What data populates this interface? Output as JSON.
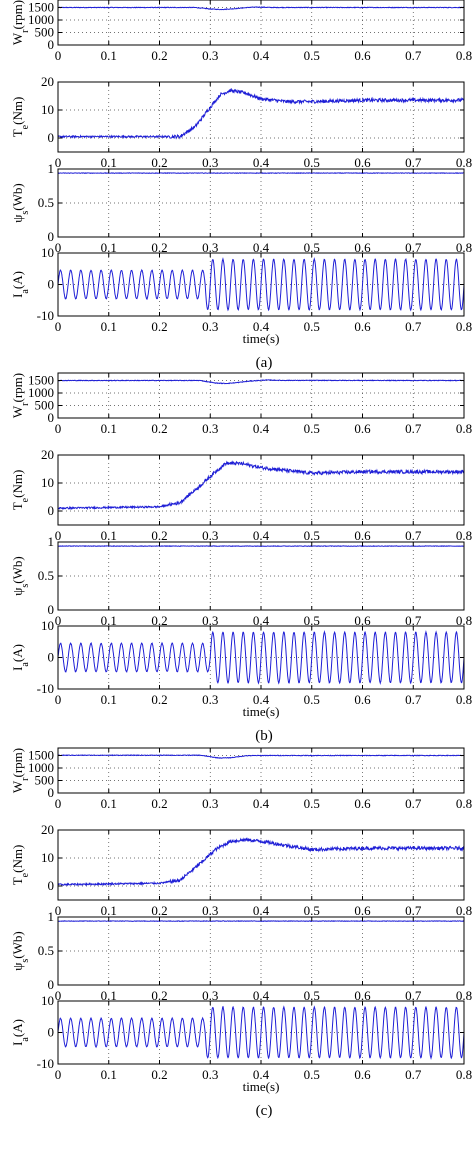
{
  "figure": {
    "xlabel": "time(s)",
    "panels": [
      "(a)",
      "(b)",
      "(c)"
    ]
  },
  "colors": {
    "trace": "#1f1fd6",
    "axis": "#000000",
    "grid": "#444444"
  },
  "chart_data": [
    {
      "type": "line",
      "title": "",
      "subplots": [
        {
          "ylabel": "W_r(rpm)",
          "ylim": [
            0,
            1800
          ],
          "yticks": [
            "0",
            "500",
            "1000",
            "1500"
          ],
          "xlim": [
            0,
            0.8
          ],
          "xticks": [
            "0",
            "0.1",
            "0.2",
            "0.3",
            "0.4",
            "0.5",
            "0.6",
            "0.7",
            "0.8"
          ],
          "series": [
            {
              "x": [
                0,
                0.27,
                0.3,
                0.32,
                0.34,
                0.38,
                0.4,
                0.42,
                0.8
              ],
              "values": [
                1500,
                1500,
                1440,
                1420,
                1440,
                1510,
                1515,
                1500,
                1500
              ]
            }
          ]
        },
        {
          "ylabel": "T_e(Nm)",
          "ylim": [
            -5,
            20
          ],
          "yticks": [
            "0",
            "10",
            "20"
          ],
          "xlim": [
            0,
            0.8
          ],
          "xticks": [
            "0",
            "0.1",
            "0.2",
            "0.3",
            "0.4",
            "0.5",
            "0.6",
            "0.7",
            "0.8"
          ],
          "series": [
            {
              "x": [
                0,
                0.24,
                0.27,
                0.3,
                0.32,
                0.34,
                0.37,
                0.4,
                0.45,
                0.5,
                0.6,
                0.7,
                0.8
              ],
              "values": [
                0.5,
                0.5,
                4,
                11,
                15.5,
                17,
                16,
                14,
                13,
                13,
                13.5,
                13.5,
                13.5
              ]
            }
          ]
        },
        {
          "ylabel": "ψ_s(Wb)",
          "ylim": [
            0,
            1
          ],
          "yticks": [
            "0",
            "0.5",
            "1"
          ],
          "xlim": [
            0,
            0.8
          ],
          "xticks": [
            "0",
            "0.1",
            "0.2",
            "0.3",
            "0.4",
            "0.5",
            "0.6",
            "0.7",
            "0.8"
          ],
          "series": [
            {
              "x": [
                0,
                0.8
              ],
              "values": [
                0.94,
                0.94
              ]
            }
          ]
        },
        {
          "ylabel": "I_a(A)",
          "ylim": [
            -10,
            10
          ],
          "yticks": [
            "-10",
            "0",
            "10"
          ],
          "xlim": [
            0,
            0.8
          ],
          "xticks": [
            "0",
            "0.1",
            "0.2",
            "0.3",
            "0.4",
            "0.5",
            "0.6",
            "0.7",
            "0.8"
          ],
          "series": [
            {
              "waveform": "sine",
              "frequency_hz": 50,
              "amplitude_before": 4.5,
              "amplitude_after": 8,
              "transition_x": 0.29
            }
          ]
        }
      ]
    },
    {
      "type": "line",
      "title": "",
      "subplots": [
        {
          "ylabel": "W_r(rpm)",
          "ylim": [
            0,
            1800
          ],
          "yticks": [
            "0",
            "500",
            "1000",
            "1500"
          ],
          "xlim": [
            0,
            0.8
          ],
          "xticks": [
            "0",
            "0.1",
            "0.2",
            "0.3",
            "0.4",
            "0.5",
            "0.6",
            "0.7",
            "0.8"
          ],
          "series": [
            {
              "x": [
                0,
                0.28,
                0.31,
                0.33,
                0.35,
                0.38,
                0.41,
                0.44,
                0.8
              ],
              "values": [
                1500,
                1500,
                1400,
                1380,
                1410,
                1480,
                1520,
                1505,
                1500
              ]
            }
          ]
        },
        {
          "ylabel": "T_e(Nm)",
          "ylim": [
            -5,
            20
          ],
          "yticks": [
            "0",
            "10",
            "20"
          ],
          "xlim": [
            0,
            0.8
          ],
          "xticks": [
            "0",
            "0.1",
            "0.2",
            "0.3",
            "0.4",
            "0.5",
            "0.6",
            "0.7",
            "0.8"
          ],
          "series": [
            {
              "x": [
                0,
                0.2,
                0.24,
                0.28,
                0.31,
                0.33,
                0.36,
                0.4,
                0.45,
                0.5,
                0.6,
                0.7,
                0.8
              ],
              "values": [
                1,
                1.5,
                3,
                9,
                14,
                17,
                17,
                15.5,
                14.5,
                13.5,
                14,
                14,
                14
              ]
            }
          ]
        },
        {
          "ylabel": "ψ_s(Wb)",
          "ylim": [
            0,
            1
          ],
          "yticks": [
            "0",
            "0.5",
            "1"
          ],
          "xlim": [
            0,
            0.8
          ],
          "xticks": [
            "0",
            "0.1",
            "0.2",
            "0.3",
            "0.4",
            "0.5",
            "0.6",
            "0.7",
            "0.8"
          ],
          "series": [
            {
              "x": [
                0,
                0.8
              ],
              "values": [
                0.94,
                0.94
              ]
            }
          ]
        },
        {
          "ylabel": "I_a(A)",
          "ylim": [
            -10,
            10
          ],
          "yticks": [
            "-10",
            "0",
            "10"
          ],
          "xlim": [
            0,
            0.8
          ],
          "xticks": [
            "0",
            "0.1",
            "0.2",
            "0.3",
            "0.4",
            "0.5",
            "0.6",
            "0.7",
            "0.8"
          ],
          "series": [
            {
              "waveform": "sine",
              "frequency_hz": 50,
              "amplitude_before": 4.5,
              "amplitude_after": 8,
              "transition_x": 0.3
            }
          ]
        }
      ]
    },
    {
      "type": "line",
      "title": "",
      "subplots": [
        {
          "ylabel": "W_r(rpm)",
          "ylim": [
            0,
            1800
          ],
          "yticks": [
            "0",
            "500",
            "1000",
            "1500"
          ],
          "xlim": [
            0,
            0.8
          ],
          "xticks": [
            "0",
            "0.1",
            "0.2",
            "0.3",
            "0.4",
            "0.5",
            "0.6",
            "0.7",
            "0.8"
          ],
          "series": [
            {
              "x": [
                0,
                0.28,
                0.31,
                0.32,
                0.34,
                0.37,
                0.4,
                0.8
              ],
              "values": [
                1510,
                1510,
                1420,
                1400,
                1410,
                1490,
                1500,
                1500
              ]
            }
          ]
        },
        {
          "ylabel": "T_e(Nm)",
          "ylim": [
            -5,
            20
          ],
          "yticks": [
            "0",
            "10",
            "20"
          ],
          "xlim": [
            0,
            0.8
          ],
          "xticks": [
            "0",
            "0.1",
            "0.2",
            "0.3",
            "0.4",
            "0.5",
            "0.6",
            "0.7",
            "0.8"
          ],
          "series": [
            {
              "x": [
                0,
                0.2,
                0.24,
                0.28,
                0.31,
                0.34,
                0.37,
                0.4,
                0.45,
                0.5,
                0.6,
                0.7,
                0.8
              ],
              "values": [
                0.5,
                1,
                2,
                8,
                13,
                16,
                16.5,
                16,
                14.5,
                13,
                13.5,
                13.5,
                13.5
              ]
            }
          ]
        },
        {
          "ylabel": "ψ_s(Wb)",
          "ylim": [
            0,
            1
          ],
          "yticks": [
            "0",
            "0.5",
            "1"
          ],
          "xlim": [
            0,
            0.8
          ],
          "xticks": [
            "0",
            "0.1",
            "0.2",
            "0.3",
            "0.4",
            "0.5",
            "0.6",
            "0.7",
            "0.8"
          ],
          "series": [
            {
              "x": [
                0,
                0.8
              ],
              "values": [
                0.94,
                0.94
              ]
            }
          ]
        },
        {
          "ylabel": "I_a(A)",
          "ylim": [
            -10,
            10
          ],
          "yticks": [
            "-10",
            "0",
            "10"
          ],
          "xlim": [
            0,
            0.8
          ],
          "xticks": [
            "0",
            "0.1",
            "0.2",
            "0.3",
            "0.4",
            "0.5",
            "0.6",
            "0.7",
            "0.8"
          ],
          "series": [
            {
              "waveform": "sine",
              "frequency_hz": 50,
              "amplitude_before": 4.5,
              "amplitude_after": 8,
              "transition_x": 0.29
            }
          ]
        }
      ]
    }
  ]
}
